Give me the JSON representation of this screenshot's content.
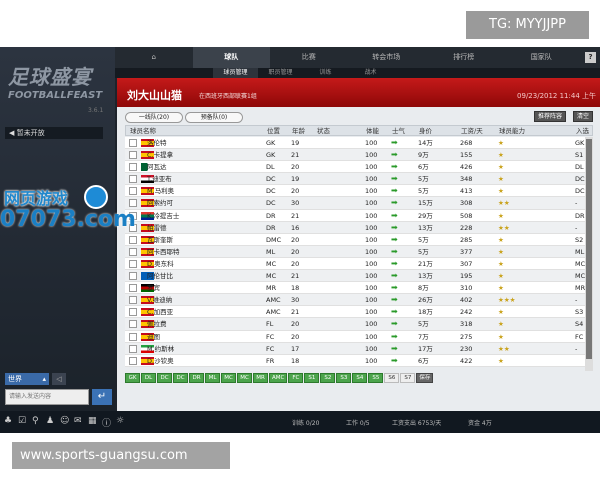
{
  "watermarks": {
    "top": "TG: MYYJJPP",
    "bottom": "www.sports-guangsu.com",
    "logo_line1": "网页游戏",
    "logo_line2": "07073.com"
  },
  "sidebar": {
    "logo_cn": "足球盛宴",
    "logo_en": "FOOTBALLFEAST",
    "version": "3.6.1",
    "notice": "暂未开放",
    "chat_channel": "世界",
    "chat_placeholder": "请输入发送内容"
  },
  "nav": {
    "items": [
      "球队",
      "比赛",
      "转会市场",
      "排行榜",
      "国家队"
    ],
    "active": "球队",
    "help": "?"
  },
  "subnav": {
    "items": [
      "球员管理",
      "职员管理",
      "训练",
      "战术"
    ]
  },
  "header": {
    "team": "刘大山山猫",
    "league": "在西班牙西部联赛1组",
    "datetime": "09/23/2012 11:44 上午"
  },
  "tabs": {
    "first": "一线队(20)",
    "reserve": "预备队(0)"
  },
  "buttons": {
    "recommend": "推荐阵容",
    "clear": "清空",
    "save": "保存"
  },
  "columns": [
    "球员名称",
    "位置",
    "年龄",
    "状态",
    "体能",
    "士气",
    "身价",
    "工资/天",
    "球员能力",
    "入选"
  ],
  "players": [
    {
      "name": "洛伦特",
      "flag": "spain",
      "pos": "GK",
      "age": "19",
      "stamina": "100",
      "value": "14万",
      "wage": "268",
      "stars": 1,
      "sel": "GK"
    },
    {
      "name": "C.卡提拿",
      "flag": "spain",
      "pos": "GK",
      "age": "21",
      "stamina": "100",
      "value": "9万",
      "wage": "155",
      "stars": 1,
      "sel": "S1"
    },
    {
      "name": "阿瓦达",
      "flag": "algeria",
      "pos": "DL",
      "age": "20",
      "stamina": "100",
      "value": "6万",
      "wage": "426",
      "stars": 1,
      "sel": "DL"
    },
    {
      "name": "T.迪亚布",
      "flag": "iraq",
      "pos": "DC",
      "age": "19",
      "stamina": "100",
      "value": "5万",
      "wage": "348",
      "stars": 1,
      "sel": "DC"
    },
    {
      "name": "M.马利奥",
      "flag": "spain",
      "pos": "DC",
      "age": "20",
      "stamina": "100",
      "value": "5万",
      "wage": "413",
      "stars": 1,
      "sel": "DC"
    },
    {
      "name": "阿索约可",
      "flag": "spain",
      "pos": "DC",
      "age": "30",
      "stamina": "100",
      "value": "15万",
      "wage": "308",
      "stars": 2,
      "sel": "-"
    },
    {
      "name": "K.冷提吉士",
      "flag": "south-africa",
      "pos": "DR",
      "age": "21",
      "stamina": "100",
      "value": "29万",
      "wage": "508",
      "stars": 1,
      "sel": "DR"
    },
    {
      "name": "帕雷德",
      "flag": "spain",
      "pos": "DR",
      "age": "16",
      "stamina": "100",
      "value": "13万",
      "wage": "228",
      "stars": 1.5,
      "sel": "-"
    },
    {
      "name": "瓦斯奎斯",
      "flag": "spain",
      "pos": "DMC",
      "age": "20",
      "stamina": "100",
      "value": "5万",
      "wage": "285",
      "stars": 1,
      "sel": "S2"
    },
    {
      "name": "阿卡西耶特",
      "flag": "spain",
      "pos": "ML",
      "age": "20",
      "stamina": "100",
      "value": "5万",
      "wage": "377",
      "stars": 1,
      "sel": "ML"
    },
    {
      "name": "D.奥东科",
      "flag": "spain",
      "pos": "MC",
      "age": "20",
      "stamina": "100",
      "value": "21万",
      "wage": "307",
      "stars": 1,
      "sel": "MC"
    },
    {
      "name": "阿伦甘比",
      "flag": "scotland",
      "pos": "MC",
      "age": "21",
      "stamina": "100",
      "value": "13万",
      "wage": "195",
      "stars": 1,
      "sel": "MC"
    },
    {
      "name": "罗宾",
      "flag": "kenya",
      "pos": "MR",
      "age": "18",
      "stamina": "100",
      "value": "8万",
      "wage": "310",
      "stars": 1,
      "sel": "MR"
    },
    {
      "name": "V.维迪纳",
      "flag": "spain",
      "pos": "AMC",
      "age": "30",
      "stamina": "100",
      "value": "26万",
      "wage": "402",
      "stars": 3,
      "sel": "-"
    },
    {
      "name": "C.加西亚",
      "flag": "spain",
      "pos": "AMC",
      "age": "21",
      "stamina": "100",
      "value": "18万",
      "wage": "242",
      "stars": 1,
      "sel": "S3"
    },
    {
      "name": "佩拉费",
      "flag": "spain",
      "pos": "FL",
      "age": "20",
      "stamina": "100",
      "value": "5万",
      "wage": "318",
      "stars": 1,
      "sel": "S4"
    },
    {
      "name": "迪图",
      "flag": "spain",
      "pos": "FC",
      "age": "20",
      "stamina": "100",
      "value": "7万",
      "wage": "275",
      "stars": 1,
      "sel": "FC"
    },
    {
      "name": "M.约斯林",
      "flag": "iran",
      "pos": "FC",
      "age": "17",
      "stamina": "100",
      "value": "17万",
      "wage": "230",
      "stars": 1.5,
      "sel": "-"
    },
    {
      "name": "D.沙钦奥",
      "flag": "spain",
      "pos": "FR",
      "age": "18",
      "stamina": "100",
      "value": "6万",
      "wage": "422",
      "stars": 1,
      "sel": ""
    }
  ],
  "formation": {
    "filled": [
      "GK",
      "DL",
      "DC",
      "DC",
      "DR",
      "ML",
      "MC",
      "MC",
      "MR",
      "AMC",
      "FC",
      "S1",
      "S2",
      "S3",
      "S4",
      "S5"
    ],
    "empty": [
      "S6",
      "S7"
    ]
  },
  "status": {
    "training": "训练 0/20",
    "work": "工作 0/5",
    "wage": "工资支出 6753/天",
    "funds": "资金 4万"
  },
  "colors": {
    "accent": "#b51212",
    "formation": "#4ca44c",
    "morale": "#2a9a2a",
    "star": "#c9a21a"
  }
}
